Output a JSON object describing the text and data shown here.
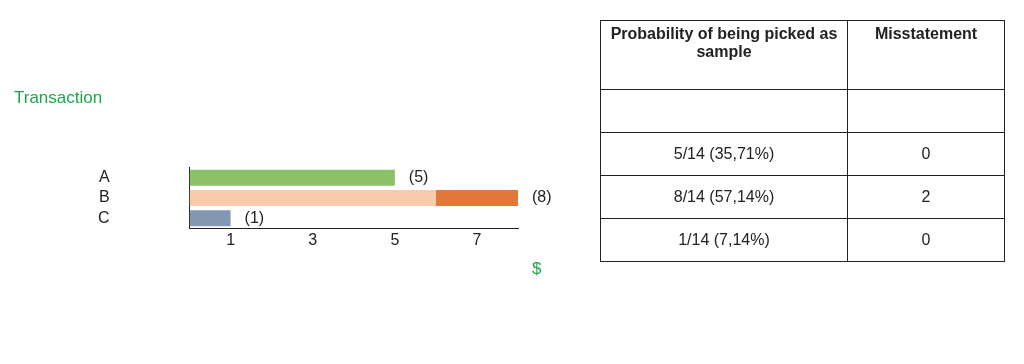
{
  "chart_data": [
    {
      "type": "bar",
      "orientation": "horizontal",
      "stacked": true,
      "ylabel": "Transaction",
      "xlabel": "$",
      "categories": [
        "A",
        "B",
        "C"
      ],
      "series": [
        {
          "colors": [
            "#8cc168",
            "#f8cbad",
            "#8497b0"
          ],
          "values": [
            5,
            6,
            1
          ]
        },
        {
          "color": "#e2793a",
          "values": [
            null,
            2,
            null
          ]
        }
      ],
      "xlim": [
        0,
        8
      ],
      "xticks": [
        1,
        3,
        5,
        7
      ],
      "totals": [
        "(5)",
        "(8)",
        "(1)"
      ]
    },
    {
      "type": "other",
      "categories": [
        "Probability of being picked as sample",
        "Misstatement"
      ],
      "cell_labels": [
        [
          null,
          null
        ],
        [
          "5/14 (35,71%)",
          "0"
        ],
        [
          "8/14 (57,14%)",
          "2"
        ],
        [
          "1/14 (7,14%)",
          "0"
        ]
      ]
    }
  ]
}
